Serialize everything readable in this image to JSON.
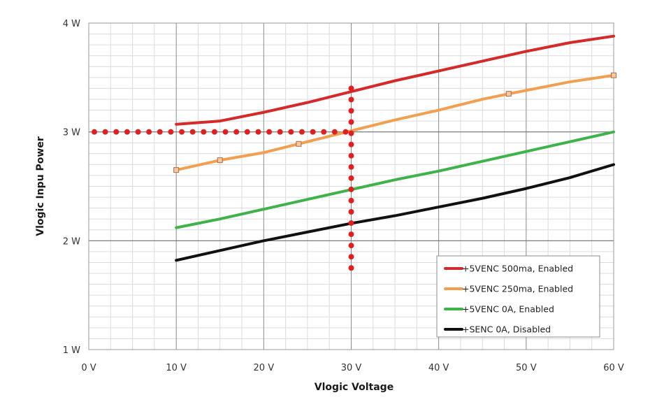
{
  "chart_data": {
    "type": "line",
    "title": "",
    "xlabel": "Vlogic Voltage",
    "ylabel": "Vlogic Inpu Power",
    "xlim": [
      0,
      60
    ],
    "ylim": [
      1,
      4
    ],
    "x_ticks": [
      0,
      10,
      20,
      30,
      40,
      50,
      60
    ],
    "x_tick_labels": [
      "0 V",
      "10 V",
      "20 V",
      "30 V",
      "40 V",
      "50 V",
      "60 V"
    ],
    "y_ticks": [
      1,
      2,
      3,
      4
    ],
    "y_tick_labels": [
      "1 W",
      "2 W",
      "3 W",
      "4 W"
    ],
    "grid": true,
    "legend_position": "bottom-right",
    "series": [
      {
        "name": "+5VENC 500ma, Enabled",
        "color": "#d42a2a",
        "x": [
          10,
          15,
          20,
          25,
          30,
          35,
          40,
          45,
          50,
          55,
          60
        ],
        "y": [
          3.07,
          3.1,
          3.18,
          3.27,
          3.37,
          3.47,
          3.56,
          3.65,
          3.74,
          3.82,
          3.88
        ]
      },
      {
        "name": "+5VENC 250ma, Enabled",
        "color": "#f0a050",
        "x": [
          10,
          15,
          20,
          24,
          30,
          35,
          40,
          45,
          48,
          55,
          60
        ],
        "y": [
          2.65,
          2.74,
          2.81,
          2.89,
          3.01,
          3.11,
          3.2,
          3.3,
          3.35,
          3.46,
          3.52
        ],
        "markers": [
          10,
          15,
          24,
          48,
          60
        ]
      },
      {
        "name": "+5VENC 0A, Enabled",
        "color": "#3fb24a",
        "x": [
          10,
          15,
          20,
          25,
          30,
          35,
          40,
          45,
          50,
          55,
          60
        ],
        "y": [
          2.12,
          2.2,
          2.29,
          2.38,
          2.47,
          2.56,
          2.64,
          2.73,
          2.82,
          2.91,
          3.0
        ]
      },
      {
        "name": "+SENC 0A, Disabled",
        "color": "#111111",
        "x": [
          10,
          15,
          20,
          25,
          30,
          35,
          40,
          45,
          50,
          55,
          60
        ],
        "y": [
          1.82,
          1.91,
          2.0,
          2.08,
          2.16,
          2.23,
          2.31,
          2.39,
          2.48,
          2.58,
          2.7
        ]
      }
    ],
    "annotations": [
      {
        "type": "dotted-hline",
        "y": 3.0,
        "x_from": 0,
        "x_to": 30,
        "color": "#e11f1f"
      },
      {
        "type": "dotted-vline",
        "x": 30,
        "y_from": 1.75,
        "y_to": 3.4,
        "color": "#e11f1f"
      }
    ]
  }
}
